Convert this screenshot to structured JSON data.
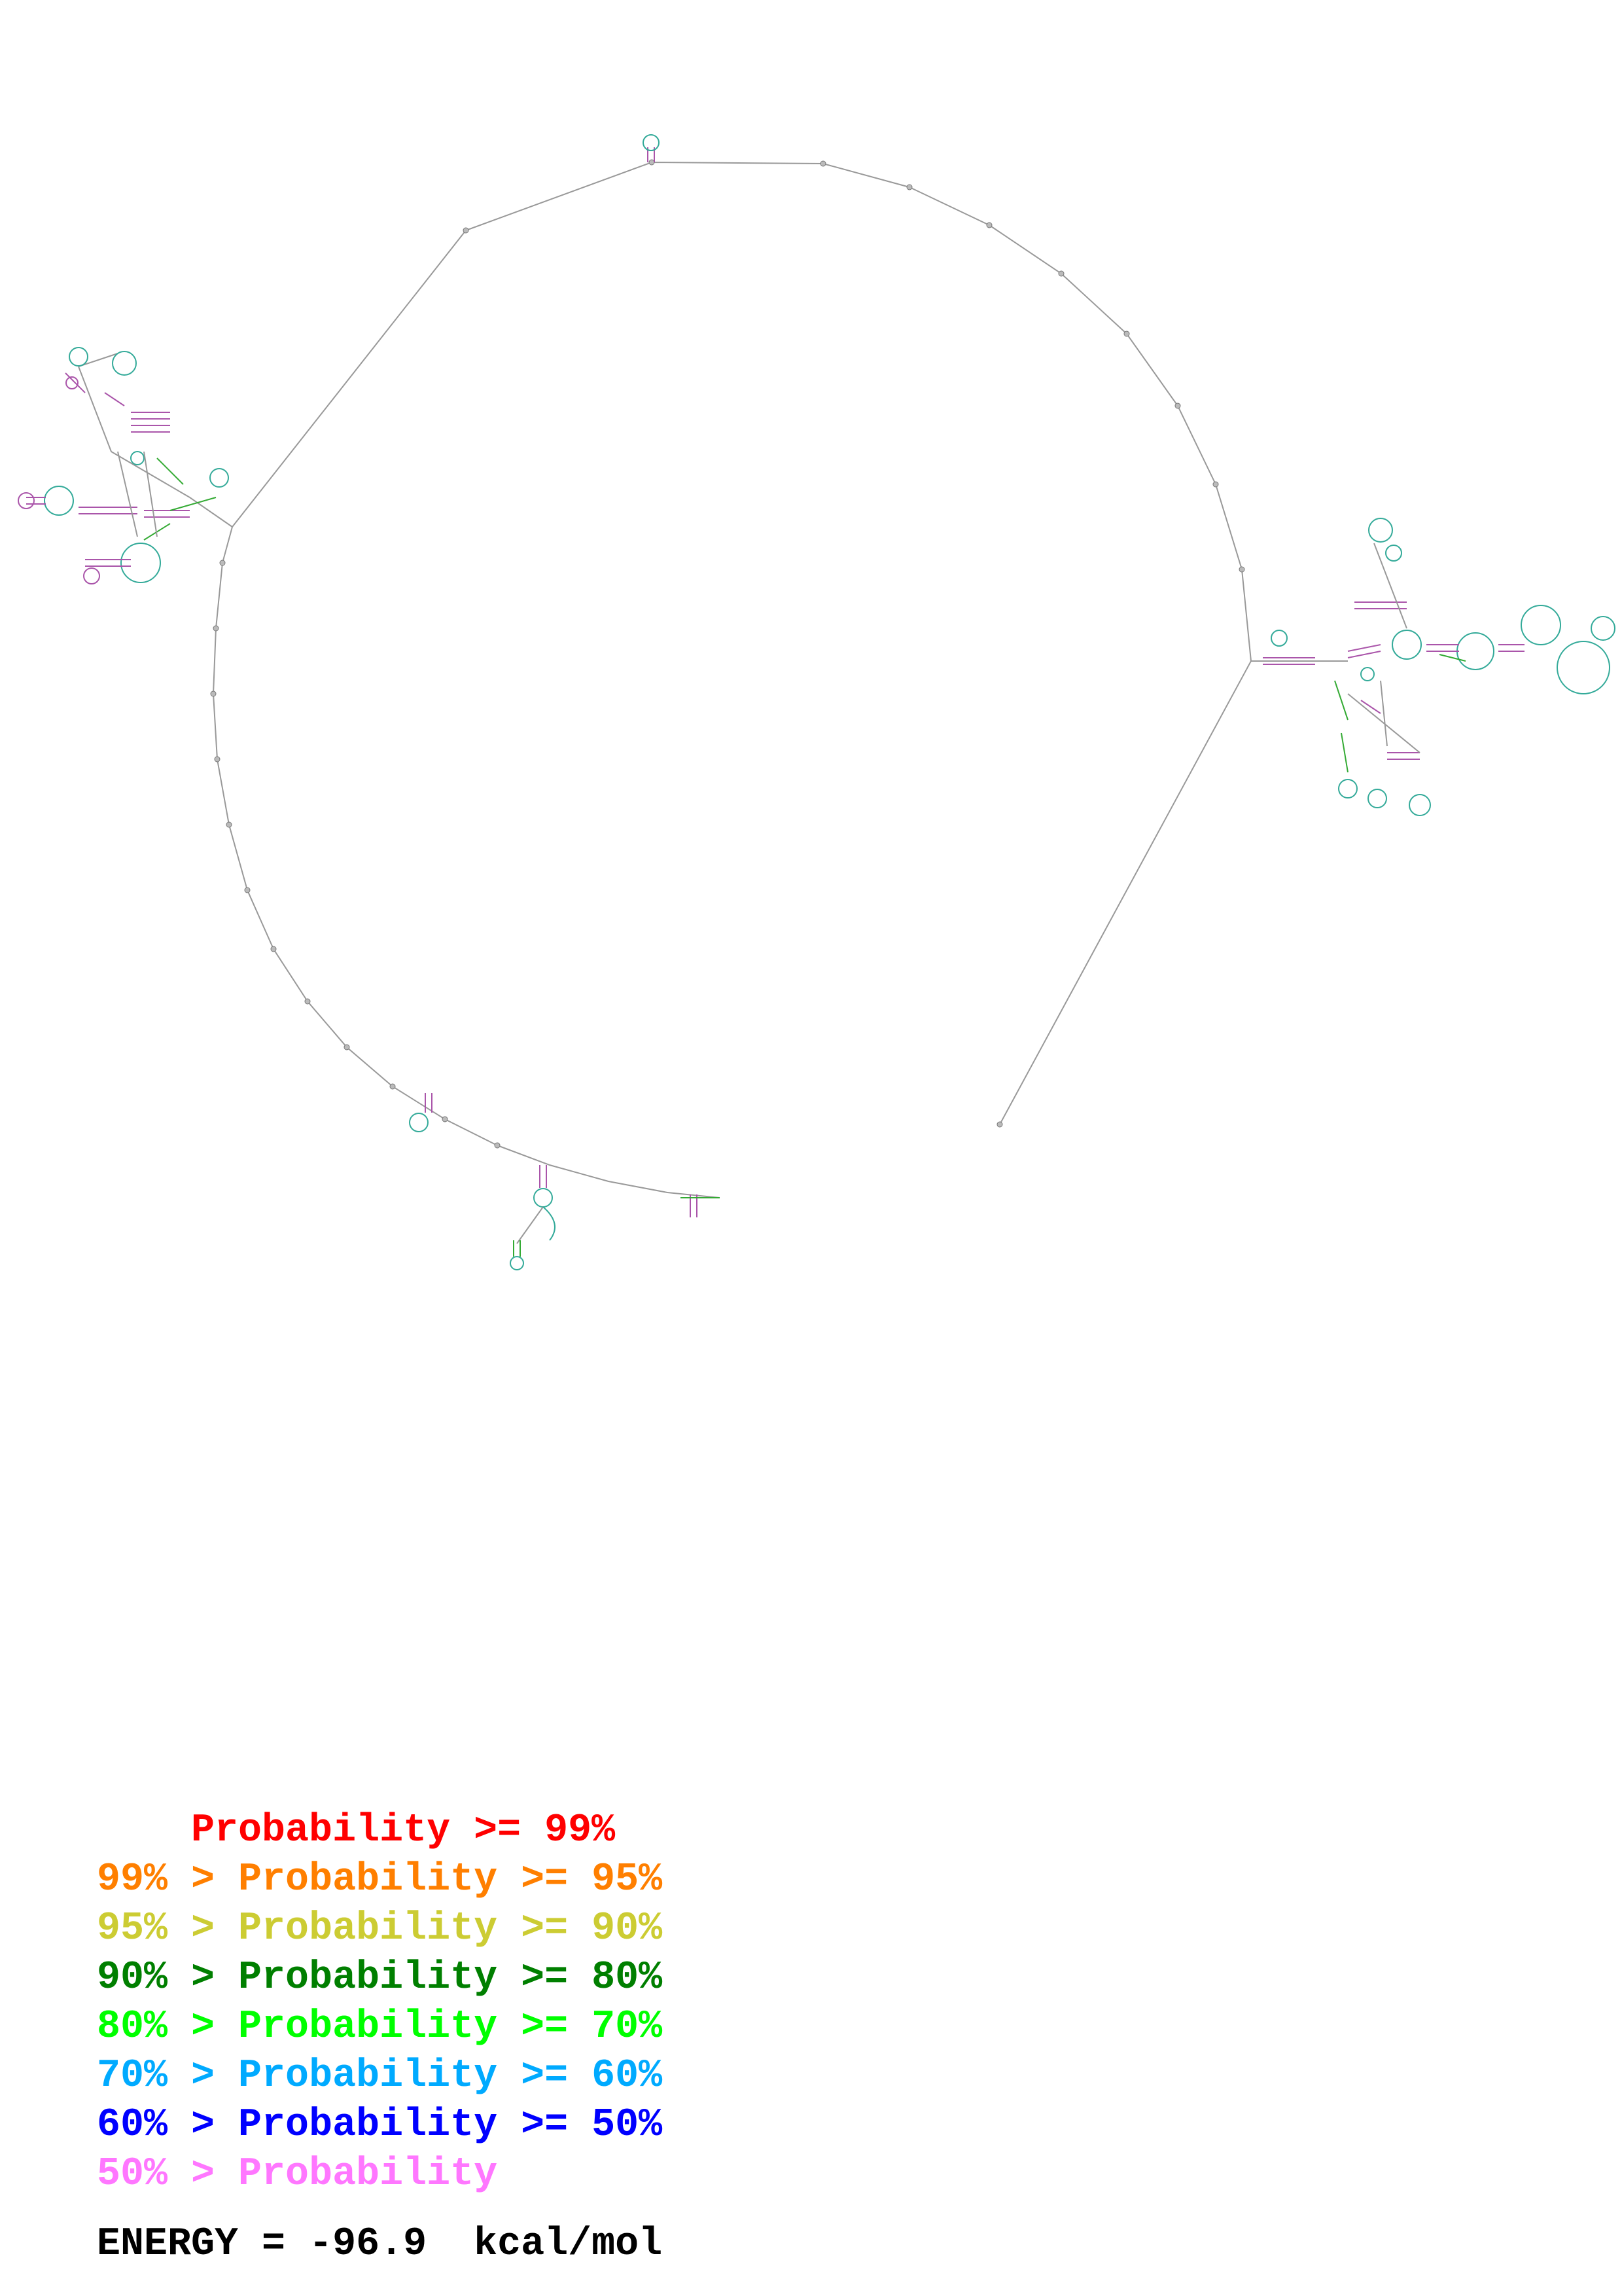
{
  "legend": [
    {
      "pre": "    ",
      "text": "Probability >= 99%",
      "color": "#ff0000"
    },
    {
      "pre": "99% > ",
      "text": "Probability >= 95%",
      "color": "#ff7f00"
    },
    {
      "pre": "95% > ",
      "text": "Probability >= 90%",
      "color": "#cccc33"
    },
    {
      "pre": "90% > ",
      "text": "Probability >= 80%",
      "color": "#007f00"
    },
    {
      "pre": "80% > ",
      "text": "Probability >= 70%",
      "color": "#00ff00"
    },
    {
      "pre": "70% > ",
      "text": "Probability >= 60%",
      "color": "#00aaff"
    },
    {
      "pre": "60% > ",
      "text": "Probability >= 50%",
      "color": "#0000ff"
    },
    {
      "pre": "50% > ",
      "text": "Probability",
      "color": "#ff77ff"
    }
  ],
  "energy": {
    "label": "ENERGY = ",
    "value": "-96.9",
    "unit": "kcal/mol"
  },
  "backbone_color": "#999999"
}
